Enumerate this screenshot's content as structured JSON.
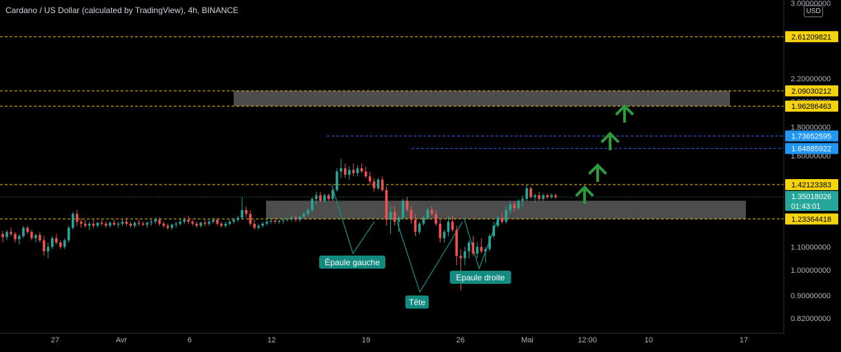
{
  "title": "Cardano / US Dollar (calculated by TradingView), 4h, BINANCE",
  "currency": "USD",
  "countdown": "01:43:01",
  "colors": {
    "background": "#000000",
    "up": "#26a69a",
    "down": "#ef5350",
    "support_line": "#f0c419",
    "target_line": "#2962ff",
    "zone": "#5a5a5a",
    "arrow": "#2e9b3a",
    "pattern": "#138b80",
    "grid_text": "#b2b5be",
    "tag_yellow": "#f5d40f",
    "tag_blue": "#2196f3",
    "tag_current": "#26a69a"
  },
  "chart_data": {
    "type": "candlestick",
    "title": "Cardano / US Dollar (calculated by TradingView), 4h, BINANCE",
    "price_scale": "log",
    "y_tick_labels": [
      "3.00000000",
      "2.20000000",
      "2.00000000",
      "1.80000000",
      "1.60000000",
      "1.10000000",
      "1.00000000",
      "0.90000000",
      "0.82000000"
    ],
    "x_tick_labels": [
      "27",
      "Avr",
      "6",
      "12",
      "19",
      "26",
      "Mai",
      "12:00",
      "10",
      "17"
    ],
    "horizontal_levels": [
      {
        "price": 2.61209821,
        "label": "2.61209821",
        "style": "dashed",
        "color": "yellow"
      },
      {
        "price": 2.09030212,
        "label": "2.09030212",
        "style": "dashed",
        "color": "yellow"
      },
      {
        "price": 1.96286463,
        "label": "1.96286463",
        "style": "dashed",
        "color": "yellow"
      },
      {
        "price": 1.73652595,
        "label": "1.73652595",
        "style": "dashed",
        "color": "blue"
      },
      {
        "price": 1.64885922,
        "label": "1.64885922",
        "style": "dashed",
        "color": "blue"
      },
      {
        "price": 1.42123383,
        "label": "1.42123383",
        "style": "dashed",
        "color": "yellow"
      },
      {
        "price": 1.23364418,
        "label": "1.23364418",
        "style": "dashed",
        "color": "yellow"
      }
    ],
    "current_price": {
      "price": 1.35018026,
      "label": "1.35018026"
    },
    "zones": [
      {
        "name": "resistance-zone",
        "price_low": 1.9629,
        "price_high": 2.0903,
        "from": "Apr 08",
        "to": "May 16"
      },
      {
        "name": "support-zone",
        "price_low": 1.2336,
        "price_high": 1.33,
        "from": "Apr 11",
        "to": "May 17"
      }
    ],
    "pattern": {
      "name": "inverse head and shoulders",
      "labels": [
        "Épaule gauche",
        "Tête",
        "Epaule droite"
      ],
      "lows": [
        1.08,
        0.905,
        1.01
      ]
    },
    "annotations": [
      {
        "type": "up-arrow",
        "count": 4
      }
    ],
    "candles": [
      [
        1.16,
        1.175,
        1.12,
        1.145
      ],
      [
        1.145,
        1.18,
        1.13,
        1.17
      ],
      [
        1.17,
        1.19,
        1.15,
        1.16
      ],
      [
        1.16,
        1.17,
        1.12,
        1.135
      ],
      [
        1.135,
        1.16,
        1.11,
        1.15
      ],
      [
        1.15,
        1.2,
        1.14,
        1.19
      ],
      [
        1.19,
        1.2,
        1.16,
        1.17
      ],
      [
        1.17,
        1.18,
        1.13,
        1.14
      ],
      [
        1.14,
        1.16,
        1.12,
        1.155
      ],
      [
        1.155,
        1.17,
        1.12,
        1.13
      ],
      [
        1.13,
        1.15,
        1.06,
        1.08
      ],
      [
        1.08,
        1.12,
        1.05,
        1.1
      ],
      [
        1.1,
        1.15,
        1.09,
        1.14
      ],
      [
        1.14,
        1.16,
        1.11,
        1.12
      ],
      [
        1.12,
        1.13,
        1.09,
        1.1
      ],
      [
        1.1,
        1.14,
        1.09,
        1.13
      ],
      [
        1.13,
        1.2,
        1.12,
        1.19
      ],
      [
        1.19,
        1.27,
        1.18,
        1.26
      ],
      [
        1.26,
        1.28,
        1.2,
        1.22
      ],
      [
        1.22,
        1.24,
        1.19,
        1.21
      ],
      [
        1.21,
        1.23,
        1.19,
        1.2
      ],
      [
        1.2,
        1.22,
        1.18,
        1.21
      ],
      [
        1.21,
        1.23,
        1.19,
        1.2
      ],
      [
        1.2,
        1.22,
        1.19,
        1.215
      ],
      [
        1.215,
        1.23,
        1.2,
        1.21
      ],
      [
        1.21,
        1.22,
        1.19,
        1.2
      ],
      [
        1.2,
        1.22,
        1.19,
        1.215
      ],
      [
        1.215,
        1.23,
        1.2,
        1.205
      ],
      [
        1.205,
        1.22,
        1.19,
        1.21
      ],
      [
        1.21,
        1.23,
        1.2,
        1.22
      ],
      [
        1.22,
        1.24,
        1.2,
        1.21
      ],
      [
        1.21,
        1.22,
        1.19,
        1.2
      ],
      [
        1.2,
        1.22,
        1.19,
        1.215
      ],
      [
        1.215,
        1.23,
        1.2,
        1.21
      ],
      [
        1.21,
        1.22,
        1.2,
        1.205
      ],
      [
        1.205,
        1.22,
        1.19,
        1.215
      ],
      [
        1.215,
        1.23,
        1.2,
        1.22
      ],
      [
        1.22,
        1.24,
        1.21,
        1.23
      ],
      [
        1.23,
        1.24,
        1.2,
        1.21
      ],
      [
        1.21,
        1.22,
        1.19,
        1.2
      ],
      [
        1.2,
        1.21,
        1.18,
        1.19
      ],
      [
        1.19,
        1.21,
        1.18,
        1.205
      ],
      [
        1.205,
        1.22,
        1.19,
        1.21
      ],
      [
        1.21,
        1.23,
        1.2,
        1.22
      ],
      [
        1.22,
        1.24,
        1.21,
        1.23
      ],
      [
        1.23,
        1.25,
        1.21,
        1.22
      ],
      [
        1.22,
        1.23,
        1.2,
        1.21
      ],
      [
        1.21,
        1.22,
        1.19,
        1.2
      ],
      [
        1.2,
        1.22,
        1.19,
        1.215
      ],
      [
        1.215,
        1.23,
        1.2,
        1.21
      ],
      [
        1.21,
        1.23,
        1.2,
        1.22
      ],
      [
        1.22,
        1.24,
        1.21,
        1.23
      ],
      [
        1.23,
        1.24,
        1.2,
        1.21
      ],
      [
        1.21,
        1.22,
        1.19,
        1.2
      ],
      [
        1.2,
        1.22,
        1.19,
        1.21
      ],
      [
        1.21,
        1.23,
        1.2,
        1.22
      ],
      [
        1.22,
        1.24,
        1.21,
        1.23
      ],
      [
        1.23,
        1.25,
        1.22,
        1.24
      ],
      [
        1.24,
        1.35,
        1.23,
        1.28
      ],
      [
        1.28,
        1.3,
        1.24,
        1.26
      ],
      [
        1.26,
        1.28,
        1.2,
        1.21
      ],
      [
        1.21,
        1.23,
        1.18,
        1.19
      ],
      [
        1.19,
        1.21,
        1.18,
        1.2
      ],
      [
        1.2,
        1.22,
        1.19,
        1.21
      ],
      [
        1.21,
        1.23,
        1.2,
        1.22
      ],
      [
        1.22,
        1.23,
        1.21,
        1.225
      ],
      [
        1.225,
        1.24,
        1.21,
        1.22
      ],
      [
        1.22,
        1.23,
        1.21,
        1.225
      ],
      [
        1.225,
        1.24,
        1.21,
        1.23
      ],
      [
        1.23,
        1.24,
        1.22,
        1.235
      ],
      [
        1.235,
        1.25,
        1.22,
        1.24
      ],
      [
        1.24,
        1.25,
        1.22,
        1.23
      ],
      [
        1.23,
        1.25,
        1.22,
        1.245
      ],
      [
        1.245,
        1.27,
        1.24,
        1.26
      ],
      [
        1.26,
        1.29,
        1.25,
        1.28
      ],
      [
        1.28,
        1.35,
        1.27,
        1.34
      ],
      [
        1.34,
        1.38,
        1.31,
        1.36
      ],
      [
        1.36,
        1.38,
        1.32,
        1.33
      ],
      [
        1.33,
        1.37,
        1.32,
        1.36
      ],
      [
        1.36,
        1.37,
        1.33,
        1.34
      ],
      [
        1.34,
        1.4,
        1.33,
        1.39
      ],
      [
        1.39,
        1.52,
        1.38,
        1.5
      ],
      [
        1.5,
        1.58,
        1.46,
        1.52
      ],
      [
        1.52,
        1.55,
        1.46,
        1.48
      ],
      [
        1.48,
        1.53,
        1.45,
        1.51
      ],
      [
        1.51,
        1.55,
        1.47,
        1.49
      ],
      [
        1.49,
        1.54,
        1.47,
        1.52
      ],
      [
        1.52,
        1.55,
        1.49,
        1.5
      ],
      [
        1.5,
        1.53,
        1.46,
        1.47
      ],
      [
        1.47,
        1.5,
        1.42,
        1.44
      ],
      [
        1.44,
        1.46,
        1.38,
        1.4
      ],
      [
        1.4,
        1.46,
        1.39,
        1.45
      ],
      [
        1.45,
        1.47,
        1.38,
        1.39
      ],
      [
        1.39,
        1.41,
        1.2,
        1.23
      ],
      [
        1.23,
        1.3,
        1.16,
        1.27
      ],
      [
        1.27,
        1.3,
        1.2,
        1.22
      ],
      [
        1.22,
        1.25,
        1.17,
        1.24
      ],
      [
        1.24,
        1.34,
        1.23,
        1.33
      ],
      [
        1.33,
        1.35,
        1.27,
        1.28
      ],
      [
        1.28,
        1.3,
        1.21,
        1.23
      ],
      [
        1.23,
        1.26,
        1.15,
        1.17
      ],
      [
        1.17,
        1.22,
        1.16,
        1.21
      ],
      [
        1.21,
        1.25,
        1.2,
        1.24
      ],
      [
        1.24,
        1.29,
        1.23,
        1.28
      ],
      [
        1.28,
        1.3,
        1.25,
        1.26
      ],
      [
        1.26,
        1.28,
        1.2,
        1.21
      ],
      [
        1.21,
        1.23,
        1.12,
        1.14
      ],
      [
        1.14,
        1.18,
        1.12,
        1.17
      ],
      [
        1.17,
        1.25,
        1.15,
        1.22
      ],
      [
        1.22,
        1.25,
        1.17,
        1.18
      ],
      [
        1.18,
        1.2,
        1.02,
        1.06
      ],
      [
        1.06,
        1.09,
        0.92,
        1.05
      ],
      [
        1.05,
        1.1,
        1.02,
        1.08
      ],
      [
        1.08,
        1.13,
        1.05,
        1.12
      ],
      [
        1.12,
        1.15,
        1.06,
        1.07
      ],
      [
        1.07,
        1.12,
        1.05,
        1.1
      ],
      [
        1.1,
        1.14,
        1.07,
        1.08
      ],
      [
        1.08,
        1.1,
        1.03,
        1.09
      ],
      [
        1.09,
        1.16,
        1.08,
        1.15
      ],
      [
        1.15,
        1.22,
        1.14,
        1.2
      ],
      [
        1.2,
        1.25,
        1.19,
        1.24
      ],
      [
        1.24,
        1.27,
        1.21,
        1.22
      ],
      [
        1.22,
        1.3,
        1.21,
        1.28
      ],
      [
        1.28,
        1.33,
        1.26,
        1.31
      ],
      [
        1.31,
        1.33,
        1.27,
        1.29
      ],
      [
        1.29,
        1.34,
        1.28,
        1.33
      ],
      [
        1.33,
        1.36,
        1.3,
        1.34
      ],
      [
        1.34,
        1.42,
        1.33,
        1.4
      ],
      [
        1.4,
        1.41,
        1.34,
        1.35
      ],
      [
        1.35,
        1.37,
        1.32,
        1.36
      ],
      [
        1.36,
        1.38,
        1.33,
        1.34
      ],
      [
        1.34,
        1.37,
        1.33,
        1.36
      ],
      [
        1.36,
        1.37,
        1.34,
        1.35
      ],
      [
        1.35,
        1.37,
        1.34,
        1.36
      ],
      [
        1.36,
        1.37,
        1.34,
        1.35
      ]
    ]
  }
}
